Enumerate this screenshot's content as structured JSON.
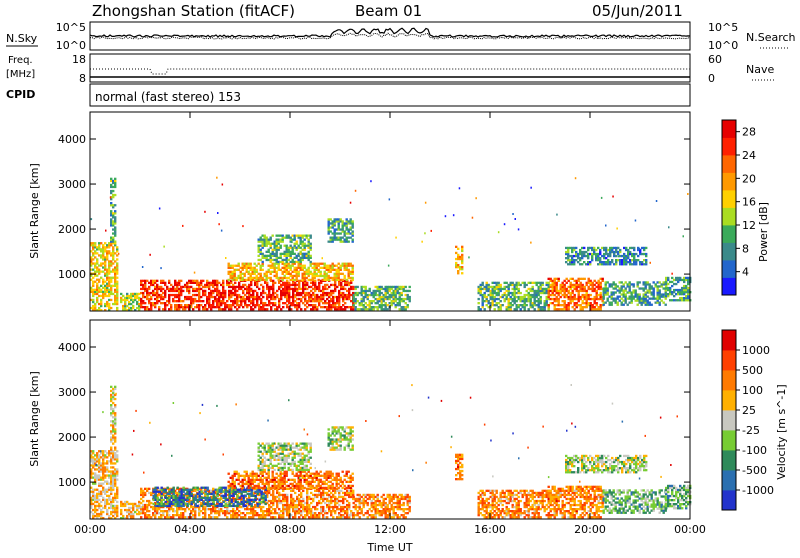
{
  "header": {
    "station_title": "Zhongshan Station (fitACF)",
    "beam": "Beam 01",
    "date": "05/Jun/2011"
  },
  "noise_panel": {
    "left_label": "N.Sky",
    "right_label": "N.Search",
    "left_ticks": [
      "10^5",
      "10^0"
    ],
    "right_ticks": [
      "10^5",
      "10^0"
    ]
  },
  "freq_panel": {
    "left_label": "Freq.",
    "left_unit": "[MHz]",
    "left_ticks": [
      "18",
      "8"
    ],
    "right_label": "Nave",
    "right_ticks": [
      "60",
      "0"
    ]
  },
  "cpid": {
    "label": "CPID",
    "text": "normal (fast stereo) 153"
  },
  "chart_data": [
    {
      "type": "heatmap",
      "title": "",
      "xlabel": "",
      "ylabel": "Slant Range [km]",
      "x_ticks": [
        "00:00",
        "04:00",
        "08:00",
        "12:00",
        "16:00",
        "20:00",
        "00:00"
      ],
      "y_ticks": [
        1000,
        2000,
        3000,
        4000
      ],
      "xlim_hours": [
        0,
        24
      ],
      "ylim_km": [
        180,
        4600
      ],
      "colorbar": {
        "label": "Power [dB]",
        "ticks": [
          4,
          8,
          12,
          16,
          20,
          24,
          28
        ],
        "range": [
          0,
          30
        ],
        "colors": [
          "#1a1aff",
          "#2266cc",
          "#3a8a8a",
          "#3aaa5a",
          "#aadd22",
          "#ffd000",
          "#ff9900",
          "#ff6600",
          "#ff2000",
          "#e60000"
        ]
      },
      "regions": [
        {
          "t0": 0.0,
          "t1": 1.1,
          "r0": 180,
          "r1": 1700,
          "level": 0.55
        },
        {
          "t0": 0.8,
          "t1": 1.0,
          "r0": 1700,
          "r1": 3100,
          "level": 0.35
        },
        {
          "t0": 1.2,
          "t1": 2.0,
          "r0": 180,
          "r1": 550,
          "level": 0.45
        },
        {
          "t0": 2.0,
          "t1": 10.5,
          "r0": 200,
          "r1": 850,
          "level": 0.85
        },
        {
          "t0": 5.5,
          "t1": 10.5,
          "r0": 850,
          "r1": 1250,
          "level": 0.6
        },
        {
          "t0": 6.7,
          "t1": 8.8,
          "r0": 1250,
          "r1": 1850,
          "level": 0.35
        },
        {
          "t0": 10.5,
          "t1": 12.8,
          "r0": 200,
          "r1": 700,
          "level": 0.35
        },
        {
          "t0": 14.6,
          "t1": 14.9,
          "r0": 1000,
          "r1": 1600,
          "level": 0.6
        },
        {
          "t0": 15.5,
          "t1": 18.3,
          "r0": 200,
          "r1": 800,
          "level": 0.35
        },
        {
          "t0": 18.3,
          "t1": 20.5,
          "r0": 200,
          "r1": 900,
          "level": 0.75
        },
        {
          "t0": 20.5,
          "t1": 23.0,
          "r0": 300,
          "r1": 800,
          "level": 0.3
        },
        {
          "t0": 19.0,
          "t1": 22.2,
          "r0": 1200,
          "r1": 1600,
          "level": 0.25
        },
        {
          "t0": 9.5,
          "t1": 10.5,
          "r0": 1700,
          "r1": 2200,
          "level": 0.3
        },
        {
          "t0": 23.0,
          "t1": 24.0,
          "r0": 400,
          "r1": 900,
          "level": 0.3
        }
      ]
    },
    {
      "type": "heatmap",
      "title": "",
      "xlabel": "Time UT",
      "ylabel": "Slant Range [km]",
      "x_ticks": [
        "00:00",
        "04:00",
        "08:00",
        "12:00",
        "16:00",
        "20:00",
        "00:00"
      ],
      "y_ticks": [
        1000,
        2000,
        3000,
        4000
      ],
      "xlim_hours": [
        0,
        24
      ],
      "ylim_km": [
        180,
        4600
      ],
      "colorbar": {
        "label": "Velocity [m s^-1]",
        "ticks": [
          "1000",
          "500",
          "100",
          "25",
          "-25",
          "-100",
          "-500",
          "-1000"
        ],
        "colors": [
          "#2233cc",
          "#2a6fb0",
          "#2e8a5a",
          "#77cc33",
          "#c8c8c0",
          "#ffb000",
          "#ff7a00",
          "#ff4000",
          "#e00000"
        ]
      },
      "regions": [
        {
          "t0": 0.0,
          "t1": 1.1,
          "r0": 180,
          "r1": 1700,
          "level": 0.6
        },
        {
          "t0": 0.8,
          "t1": 1.0,
          "r0": 1700,
          "r1": 3100,
          "level": 0.55
        },
        {
          "t0": 1.2,
          "t1": 2.0,
          "r0": 180,
          "r1": 550,
          "level": 0.6
        },
        {
          "t0": 2.0,
          "t1": 10.5,
          "r0": 200,
          "r1": 850,
          "level": 0.7
        },
        {
          "t0": 2.5,
          "t1": 7.0,
          "r0": 450,
          "r1": 900,
          "level": 0.2
        },
        {
          "t0": 5.5,
          "t1": 10.5,
          "r0": 850,
          "r1": 1250,
          "level": 0.75
        },
        {
          "t0": 6.7,
          "t1": 8.8,
          "r0": 1250,
          "r1": 1850,
          "level": 0.45
        },
        {
          "t0": 10.5,
          "t1": 12.8,
          "r0": 200,
          "r1": 700,
          "level": 0.7
        },
        {
          "t0": 14.6,
          "t1": 14.9,
          "r0": 1000,
          "r1": 1600,
          "level": 0.75
        },
        {
          "t0": 15.5,
          "t1": 18.3,
          "r0": 200,
          "r1": 800,
          "level": 0.7
        },
        {
          "t0": 18.3,
          "t1": 20.5,
          "r0": 200,
          "r1": 900,
          "level": 0.72
        },
        {
          "t0": 20.5,
          "t1": 23.0,
          "r0": 300,
          "r1": 800,
          "level": 0.35
        },
        {
          "t0": 19.0,
          "t1": 22.2,
          "r0": 1200,
          "r1": 1600,
          "level": 0.45
        },
        {
          "t0": 9.5,
          "t1": 10.5,
          "r0": 1700,
          "r1": 2200,
          "level": 0.45
        },
        {
          "t0": 23.0,
          "t1": 24.0,
          "r0": 400,
          "r1": 900,
          "level": 0.35
        }
      ]
    }
  ]
}
